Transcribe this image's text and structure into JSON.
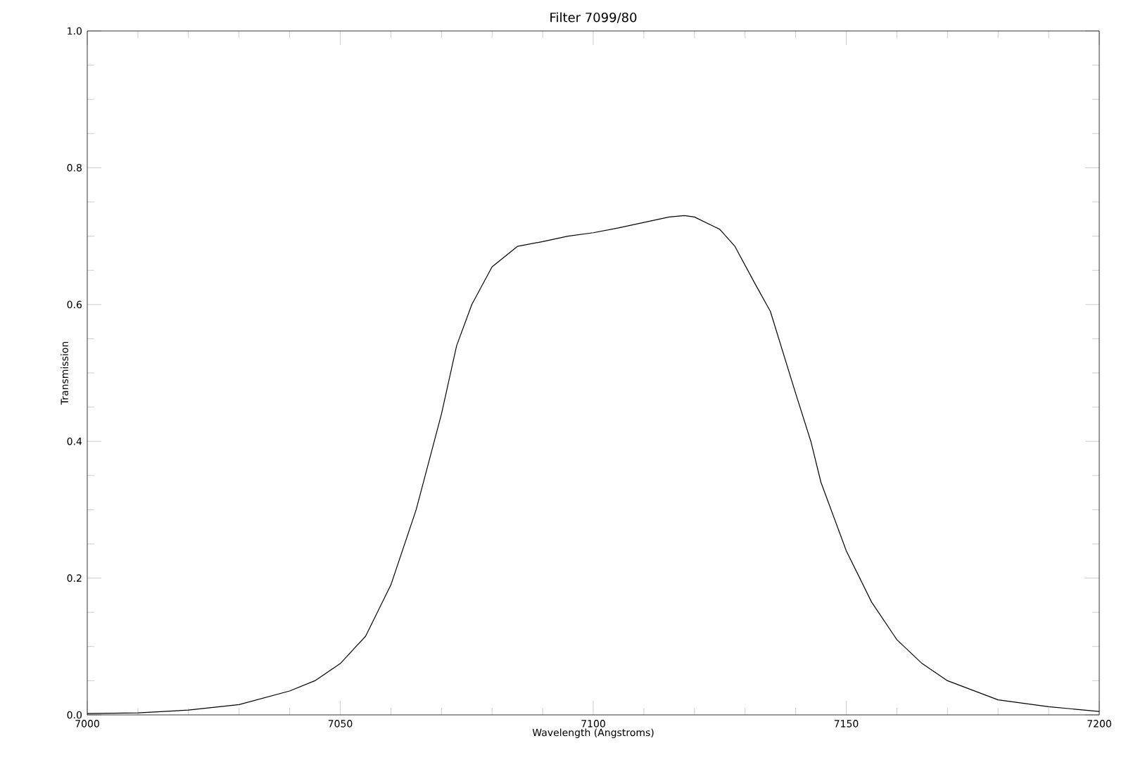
{
  "chart_data": {
    "type": "line",
    "title": "Filter 7099/80",
    "xlabel": "Wavelength (Angstroms)",
    "ylabel": "Transmission",
    "xlim": [
      7000,
      7200
    ],
    "ylim": [
      0,
      1
    ],
    "xticks": [
      7000,
      7050,
      7100,
      7150,
      7200
    ],
    "yticks": [
      {
        "value": 0,
        "label": "0.0"
      },
      {
        "value": 0.2,
        "label": "0.2"
      },
      {
        "value": 0.4,
        "label": "0.4"
      },
      {
        "value": 0.6,
        "label": "0.6"
      },
      {
        "value": 0.8,
        "label": "0.8"
      },
      {
        "value": 1,
        "label": "1.0"
      }
    ],
    "grid": false,
    "marker": "none",
    "line_style": "solid",
    "series": [
      {
        "color": "#000000",
        "x": [
          7000,
          7010,
          7020,
          7030,
          7040,
          7045,
          7050,
          7055,
          7060,
          7065,
          7070,
          7073,
          7076,
          7080,
          7085,
          7090,
          7095,
          7100,
          7105,
          7110,
          7115,
          7118,
          7120,
          7125,
          7128,
          7132,
          7135,
          7140,
          7143,
          7145,
          7150,
          7155,
          7160,
          7165,
          7170,
          7180,
          7190,
          7200
        ],
        "values": [
          0.002,
          0.003,
          0.007,
          0.015,
          0.035,
          0.05,
          0.075,
          0.115,
          0.19,
          0.3,
          0.44,
          0.54,
          0.6,
          0.655,
          0.685,
          0.692,
          0.7,
          0.705,
          0.712,
          0.72,
          0.728,
          0.73,
          0.728,
          0.71,
          0.685,
          0.63,
          0.59,
          0.47,
          0.4,
          0.34,
          0.24,
          0.165,
          0.11,
          0.075,
          0.05,
          0.022,
          0.012,
          0.005
        ]
      }
    ]
  }
}
